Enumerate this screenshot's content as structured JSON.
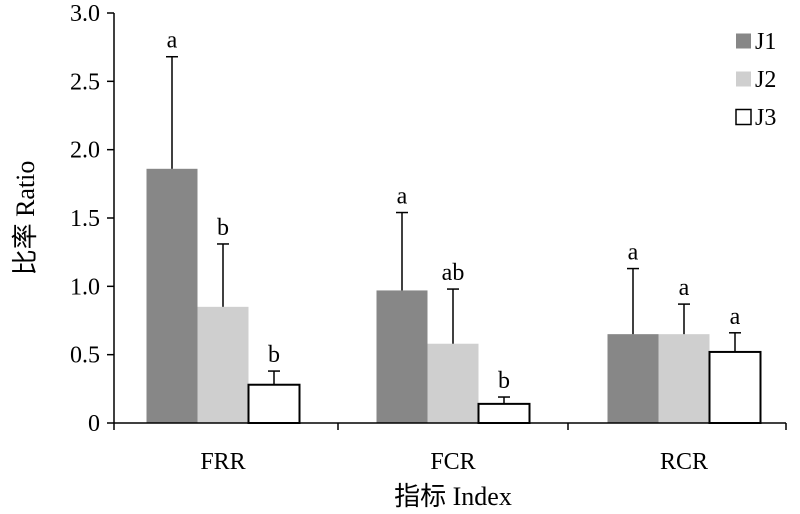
{
  "chart_data": {
    "type": "bar",
    "categories": [
      "FRR",
      "FCR",
      "RCR"
    ],
    "series": [
      {
        "name": "J1",
        "color": "#878787",
        "values": [
          1.86,
          0.97,
          0.65
        ],
        "errors": [
          0.82,
          0.57,
          0.48
        ],
        "labels": [
          "a",
          "a",
          "a"
        ]
      },
      {
        "name": "J2",
        "color": "#cfcfcf",
        "values": [
          0.85,
          0.58,
          0.65
        ],
        "errors": [
          0.46,
          0.4,
          0.22
        ],
        "labels": [
          "b",
          "ab",
          "a"
        ]
      },
      {
        "name": "J3",
        "color": "#ffffff",
        "values": [
          0.28,
          0.14,
          0.52
        ],
        "errors": [
          0.1,
          0.05,
          0.14
        ],
        "labels": [
          "b",
          "b",
          "a"
        ]
      }
    ],
    "xlabel": "指标 Index",
    "ylabel": "比率 Ratio",
    "ylim": [
      0,
      3.0
    ],
    "yticks": [
      "0",
      "0.5",
      "1.0",
      "1.5",
      "2.0",
      "2.5",
      "3.0"
    ],
    "ytick_values": [
      0,
      0.5,
      1.0,
      1.5,
      2.0,
      2.5,
      3.0
    ],
    "grid": false,
    "legend_position": "top-right",
    "bar_edge_color": "#000000"
  }
}
